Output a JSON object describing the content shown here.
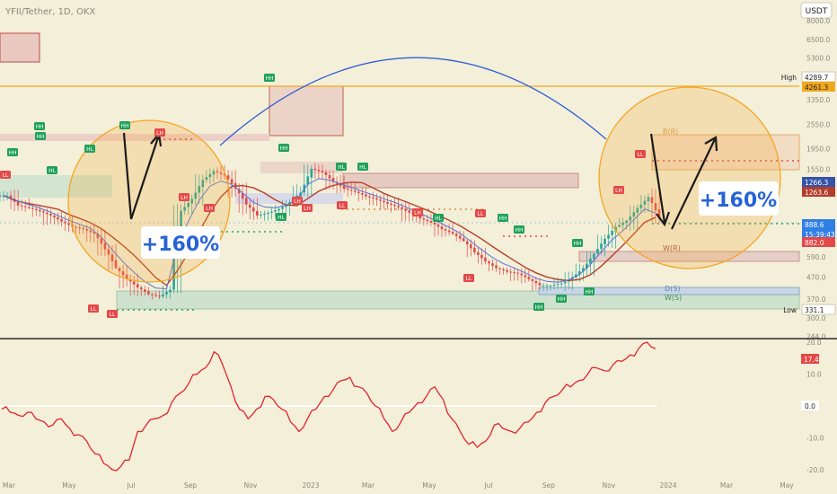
{
  "header": {
    "title": "YFII/Tether, 1D, OKX",
    "currency": "USDT"
  },
  "chart_data": [
    {
      "type": "candlestick",
      "title": "YFII/Tether, 1D, OKX",
      "price_axis": {
        "scale": "log",
        "ticks": [
          8000.0,
          6500.0,
          5300.0,
          4289.7,
          3350.0,
          2550.0,
          1950.0,
          1550.0,
          1266.3,
          888.6,
          590.0,
          470.0,
          370.0,
          331.1,
          300.0,
          244.0
        ]
      },
      "time_axis": {
        "ticks": [
          "Mar",
          "May",
          "Jul",
          "Sep",
          "Nov",
          "2023",
          "Mar",
          "May",
          "Jul",
          "Sep",
          "Nov",
          "2024",
          "Mar",
          "May"
        ]
      },
      "price_labels": [
        {
          "label": "High",
          "value": "4289.7"
        },
        {
          "label": "",
          "value": "4261.3"
        },
        {
          "label": "",
          "value": "1266.3"
        },
        {
          "label": "",
          "value": "1263.6"
        },
        {
          "label": "",
          "value": "888.6"
        },
        {
          "label": "",
          "value": "15:39:43"
        },
        {
          "label": "",
          "value": "882.0"
        },
        {
          "label": "Low",
          "value": "331.1"
        }
      ],
      "annotations": [
        "+160%",
        "+160%",
        "B(R)",
        "W(R)",
        "D(S)",
        "W(S)"
      ],
      "swing_labels": [
        "HH",
        "HH",
        "HH",
        "LL",
        "LL",
        "LL",
        "HL",
        "HL",
        "HH",
        "LH",
        "LH",
        "LH",
        "HH",
        "HH",
        "HL",
        "HL",
        "HL",
        "LH",
        "LH",
        "LL",
        "LL",
        "HH",
        "HH",
        "LH",
        "LH",
        "HL",
        "LL",
        "HH",
        "HH",
        "LL",
        "HH",
        "HH"
      ],
      "series": [
        {
          "name": "close",
          "values": [
            1160,
            1040,
            1010,
            975,
            930,
            870,
            820,
            800,
            760,
            640,
            520,
            460,
            420,
            390,
            380,
            410,
            980,
            1120,
            1380,
            1520,
            1450,
            1250,
            1050,
            930,
            960,
            1000,
            1080,
            1200,
            1560,
            1500,
            1350,
            1250,
            1210,
            1150,
            1110,
            1060,
            1020,
            960,
            900,
            860,
            800,
            760,
            700,
            620,
            560,
            520,
            500,
            490,
            460,
            430,
            430,
            440,
            470,
            520,
            610,
            720,
            820,
            880,
            1010,
            1140,
            900
          ]
        }
      ]
    },
    {
      "type": "line",
      "axis_ticks": [
        20.0,
        10.0,
        0.0,
        -10.0,
        -20.0
      ],
      "current_value": "17.4",
      "reference_line": 0.0,
      "series": [
        {
          "values": [
            -1,
            -2,
            -3,
            -2,
            -4,
            -5,
            -6,
            -4,
            -7,
            -9,
            -11,
            -15,
            -18,
            -20,
            -19,
            -17,
            -8,
            -6,
            -4,
            -3,
            1,
            4,
            7,
            10,
            12,
            17,
            13,
            6,
            -1,
            -4,
            -1,
            3,
            2,
            -1,
            -5,
            -8,
            -4,
            -1,
            3,
            5,
            8,
            9,
            6,
            4,
            0,
            -4,
            -8,
            -5,
            -2,
            1,
            3,
            6,
            2,
            -4,
            -8,
            -12,
            -13,
            -11,
            -6,
            -7,
            -8,
            -7,
            -5,
            -2,
            1,
            3,
            5,
            6,
            8,
            10,
            12,
            11,
            13,
            14,
            16,
            18,
            20,
            18
          ]
        }
      ]
    }
  ],
  "colors": {
    "background": "#f3efd9",
    "candle_up": "#26a69a",
    "candle_down": "#e44848",
    "sma": "#b4412c",
    "ema": "#5a73d8",
    "arc": "#2f5fd7",
    "circle": "#f5a623",
    "indicator": "#e0242e",
    "label_green": "#1fa05a",
    "label_red": "#e44848"
  }
}
